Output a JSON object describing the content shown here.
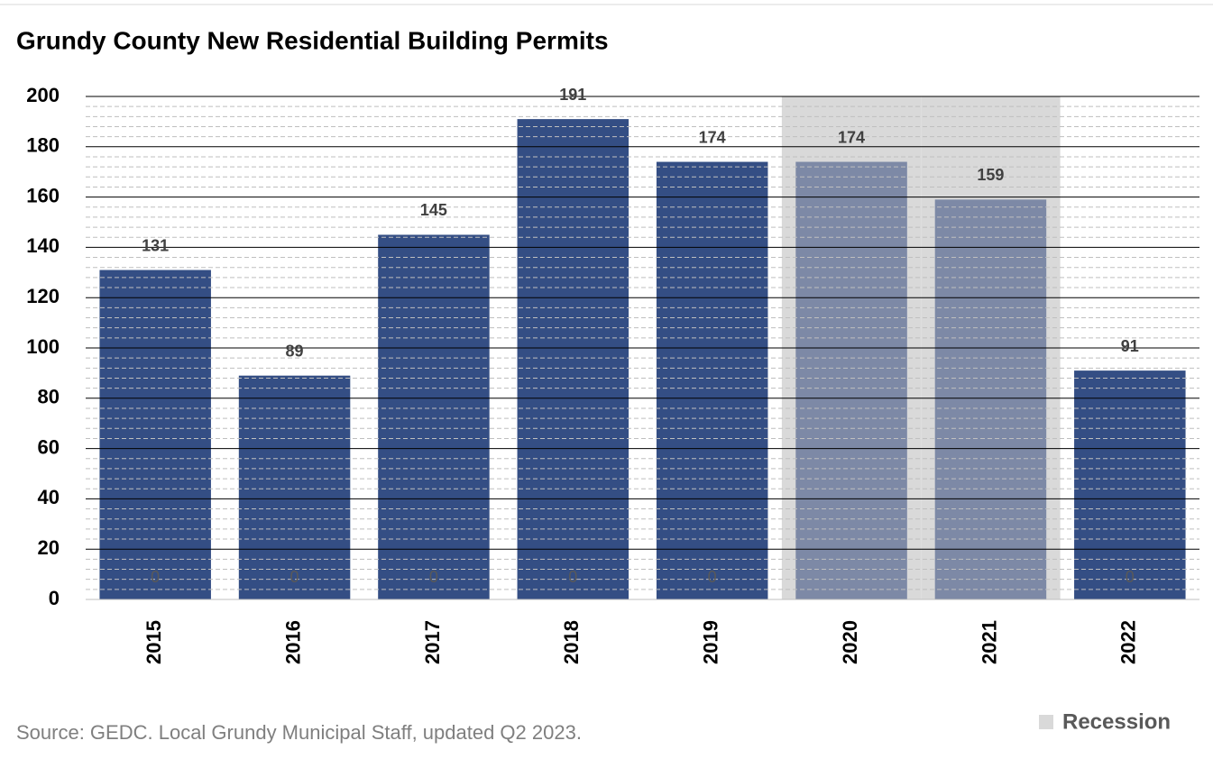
{
  "chart_data": {
    "type": "bar",
    "title": "Grundy County New Residential Building Permits",
    "source": "Source: GEDC. Local Grundy Municipal Staff, updated Q2 2023.",
    "categories": [
      "2015",
      "2016",
      "2017",
      "2018",
      "2019",
      "2020",
      "2021",
      "2022"
    ],
    "series": [
      {
        "values": [
          131,
          89,
          145,
          191,
          174,
          174,
          159,
          91
        ],
        "colors": [
          "#344e84",
          "#344e84",
          "#344e84",
          "#344e84",
          "#344e84",
          "#7d89a6",
          "#7d89a6",
          "#344e84"
        ]
      },
      {
        "name": "Recession",
        "color": "#d9d9d9",
        "full_band": true,
        "values": [
          0,
          0,
          0,
          0,
          0,
          200,
          200,
          0
        ],
        "value_labels": [
          "0",
          "0",
          "0",
          "0",
          "0",
          null,
          null,
          "0"
        ]
      }
    ],
    "ylim": [
      0,
      200
    ],
    "yticks": [
      0,
      20,
      40,
      60,
      80,
      100,
      120,
      140,
      160,
      180,
      200
    ],
    "minor_yticks": [
      4,
      8,
      12,
      16,
      24,
      28,
      32,
      36,
      44,
      48,
      52,
      56,
      64,
      68,
      72,
      76,
      84,
      88,
      92,
      96,
      104,
      108,
      112,
      116,
      124,
      128,
      132,
      136,
      144,
      148,
      152,
      156,
      164,
      168,
      172,
      176,
      184,
      188,
      192,
      196
    ],
    "grid": true,
    "legend": "bottom-right"
  }
}
